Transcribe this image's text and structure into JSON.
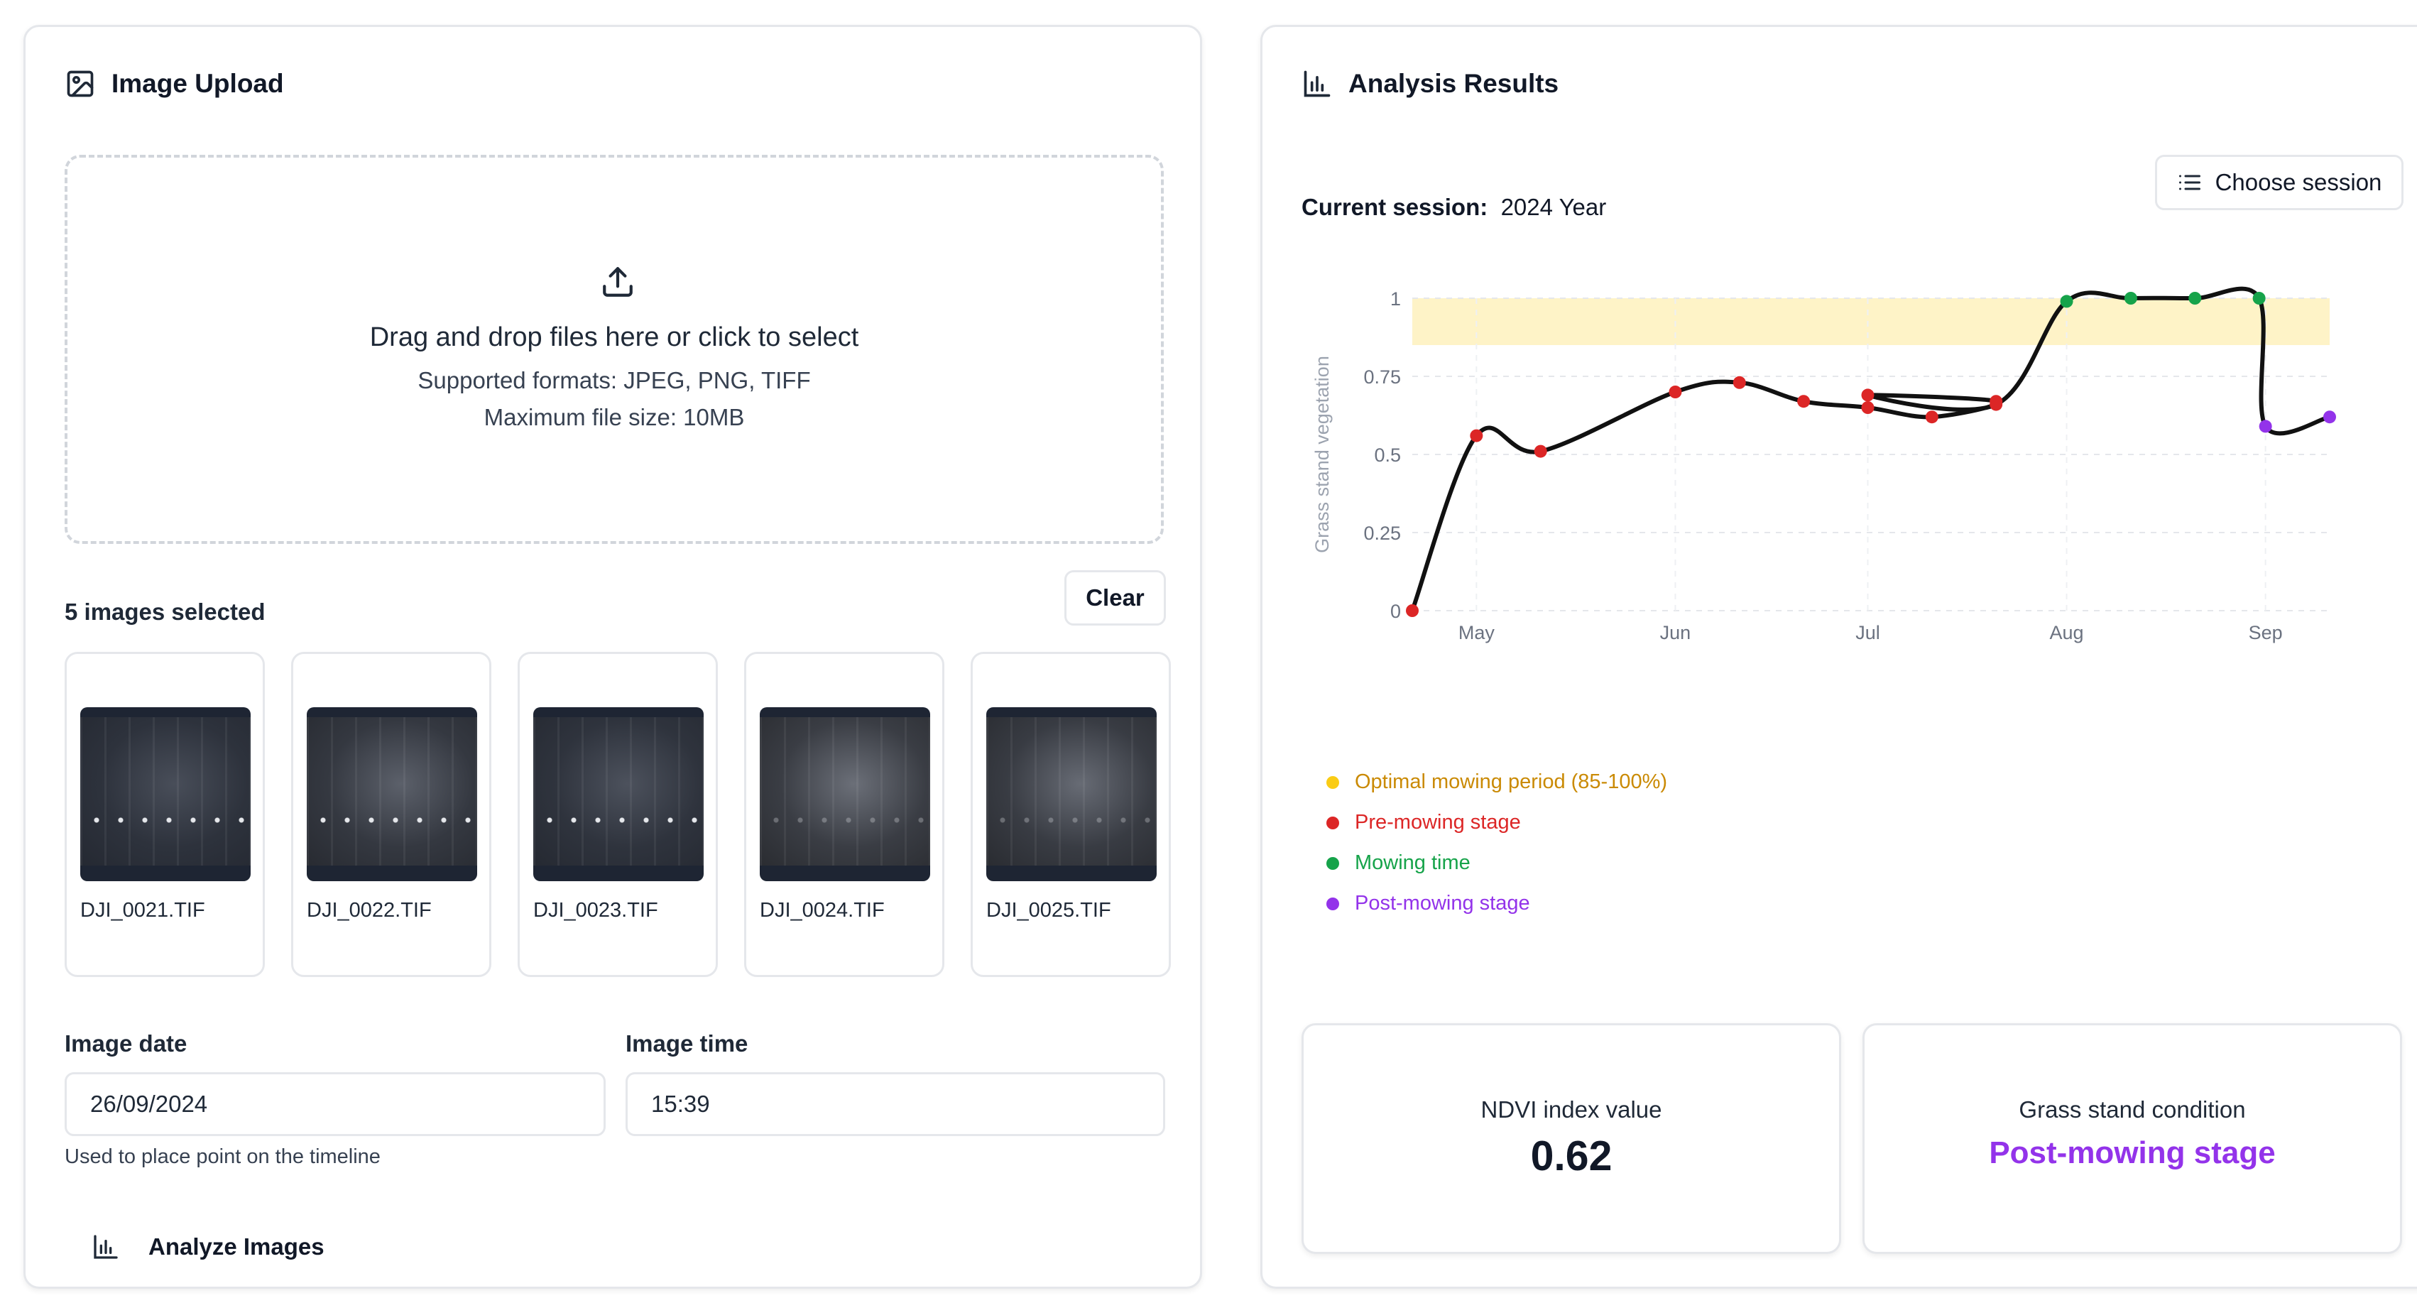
{
  "upload": {
    "title": "Image Upload",
    "dropzone": {
      "main": "Drag and drop files here or click to select",
      "formats": "Supported formats: JPEG, PNG, TIFF",
      "max_size": "Maximum file size: 10MB"
    },
    "selected_count": "5 images selected",
    "clear_label": "Clear",
    "images": [
      {
        "name": "DJI_0021.TIF"
      },
      {
        "name": "DJI_0022.TIF"
      },
      {
        "name": "DJI_0023.TIF"
      },
      {
        "name": "DJI_0024.TIF"
      },
      {
        "name": "DJI_0025.TIF"
      }
    ],
    "image_date_label": "Image date",
    "image_date_value": "26/09/2024",
    "image_time_label": "Image time",
    "image_time_value": "15:39",
    "hint": "Used to place point on the timeline",
    "analyze_label": "Analyze Images"
  },
  "results": {
    "title": "Analysis Results",
    "session_label": "Current session:",
    "session_value": "2024 Year",
    "choose_session_label": "Choose session",
    "legend": [
      {
        "label": "Optimal mowing period (85-100%)",
        "color": "#facc15",
        "text_color": "#ca8a04"
      },
      {
        "label": "Pre-mowing stage",
        "color": "#dc2626",
        "text_color": "#dc2626"
      },
      {
        "label": "Mowing time",
        "color": "#16a34a",
        "text_color": "#16a34a"
      },
      {
        "label": "Post-mowing stage",
        "color": "#9333ea",
        "text_color": "#9333ea"
      }
    ],
    "ndvi_label": "NDVI index value",
    "ndvi_value": "0.62",
    "condition_label": "Grass stand condition",
    "condition_value": "Post-mowing stage"
  },
  "chart_data": {
    "type": "line",
    "ylabel": "Grass stand vegetation",
    "ylim": [
      0,
      1
    ],
    "y_ticks": [
      "0",
      "0.25",
      "0.5",
      "0.75",
      "1"
    ],
    "x_ticks": [
      {
        "label": "May",
        "date": "2024-05-01"
      },
      {
        "label": "Jun",
        "date": "2024-06-01"
      },
      {
        "label": "Jul",
        "date": "2024-07-01"
      },
      {
        "label": "Aug",
        "date": "2024-08-01"
      },
      {
        "label": "Sep",
        "date": "2024-09-01"
      }
    ],
    "xlim": [
      "2024-04-21",
      "2024-09-11"
    ],
    "optimal_band": [
      0.85,
      1.0
    ],
    "grid": true,
    "points": [
      {
        "date": "2024-04-21",
        "y": 0.0,
        "stage": "pre"
      },
      {
        "date": "2024-05-01",
        "y": 0.56,
        "stage": "pre"
      },
      {
        "date": "2024-05-11",
        "y": 0.51,
        "stage": "pre"
      },
      {
        "date": "2024-06-01",
        "y": 0.7,
        "stage": "pre"
      },
      {
        "date": "2024-06-11",
        "y": 0.73,
        "stage": "pre"
      },
      {
        "date": "2024-06-21",
        "y": 0.67,
        "stage": "pre"
      },
      {
        "date": "2024-07-01",
        "y": 0.65,
        "stage": "pre"
      },
      {
        "date": "2024-07-11",
        "y": 0.62,
        "stage": "pre"
      },
      {
        "date": "2024-07-21",
        "y": 0.67,
        "stage": "pre"
      },
      {
        "date": "2024-07-01",
        "y": 0.69,
        "stage": "pre"
      },
      {
        "date": "2024-07-21",
        "y": 0.66,
        "stage": "pre"
      },
      {
        "date": "2024-08-01",
        "y": 0.99,
        "stage": "mowing"
      },
      {
        "date": "2024-08-11",
        "y": 1.0,
        "stage": "mowing"
      },
      {
        "date": "2024-08-21",
        "y": 1.0,
        "stage": "mowing"
      },
      {
        "date": "2024-08-31",
        "y": 1.0,
        "stage": "mowing"
      },
      {
        "date": "2024-09-01",
        "y": 0.59,
        "stage": "post"
      },
      {
        "date": "2024-09-11",
        "y": 0.62,
        "stage": "post"
      }
    ],
    "stage_colors": {
      "pre": "#dc2626",
      "mowing": "#16a34a",
      "post": "#9333ea"
    }
  }
}
